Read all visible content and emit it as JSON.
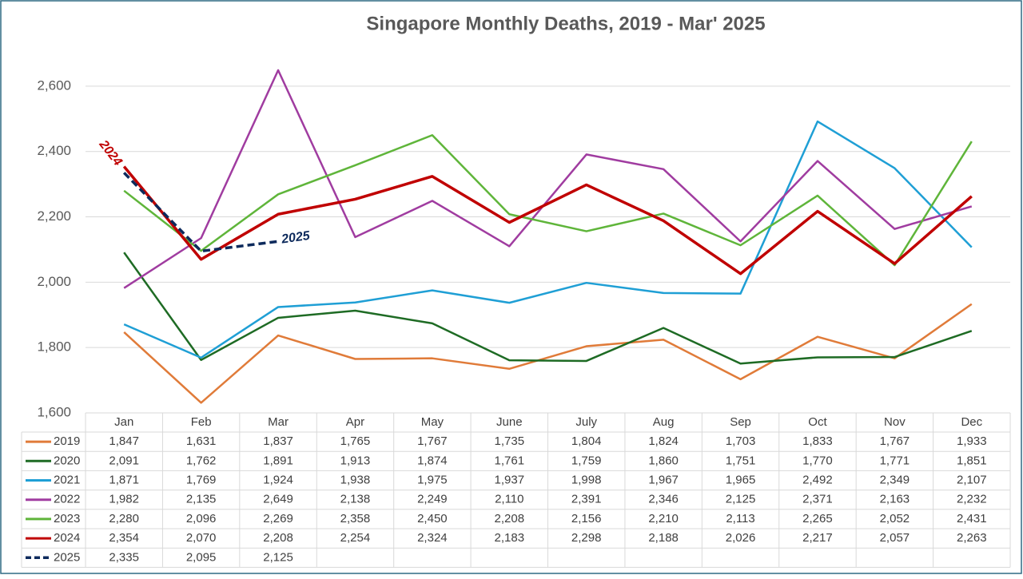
{
  "chart_data": {
    "type": "line",
    "title": "Singapore Monthly Deaths, 2019 - Mar' 2025",
    "categories": [
      "Jan",
      "Feb",
      "Mar",
      "Apr",
      "May",
      "June",
      "July",
      "Aug",
      "Sep",
      "Oct",
      "Nov",
      "Dec"
    ],
    "ylim": [
      1600,
      2700
    ],
    "yticks": [
      {
        "value": 1600,
        "label": "1,600"
      },
      {
        "value": 1800,
        "label": "1,800"
      },
      {
        "value": 2000,
        "label": "2,000"
      },
      {
        "value": 2200,
        "label": "2,200"
      },
      {
        "value": 2400,
        "label": "2,400"
      },
      {
        "value": 2600,
        "label": "2,600"
      }
    ],
    "grid": true,
    "annotations": [
      {
        "text": "2024",
        "color": "#c00000"
      },
      {
        "text": "2025",
        "color": "#0d2a5c"
      }
    ],
    "series": [
      {
        "name": "2019",
        "color": "#e07b39",
        "values": [
          1847,
          1631,
          1837,
          1765,
          1767,
          1735,
          1804,
          1824,
          1703,
          1833,
          1767,
          1933
        ],
        "value_labels": [
          "1,847",
          "1,631",
          "1,837",
          "1,765",
          "1,767",
          "1,735",
          "1,804",
          "1,824",
          "1,703",
          "1,833",
          "1,767",
          "1,933"
        ]
      },
      {
        "name": "2020",
        "color": "#1e6b24",
        "values": [
          2091,
          1762,
          1891,
          1913,
          1874,
          1761,
          1759,
          1860,
          1751,
          1770,
          1771,
          1851
        ],
        "value_labels": [
          "2,091",
          "1,762",
          "1,891",
          "1,913",
          "1,874",
          "1,761",
          "1,759",
          "1,860",
          "1,751",
          "1,770",
          "1,771",
          "1,851"
        ]
      },
      {
        "name": "2021",
        "color": "#1f9fd5",
        "values": [
          1871,
          1769,
          1924,
          1938,
          1975,
          1937,
          1998,
          1967,
          1965,
          2492,
          2349,
          2107
        ],
        "value_labels": [
          "1,871",
          "1,769",
          "1,924",
          "1,938",
          "1,975",
          "1,937",
          "1,998",
          "1,967",
          "1,965",
          "2,492",
          "2,349",
          "2,107"
        ]
      },
      {
        "name": "2022",
        "color": "#a03ca0",
        "values": [
          1982,
          2135,
          2649,
          2138,
          2249,
          2110,
          2391,
          2346,
          2125,
          2371,
          2163,
          2232
        ],
        "value_labels": [
          "1,982",
          "2,135",
          "2,649",
          "2,138",
          "2,249",
          "2,110",
          "2,391",
          "2,346",
          "2,125",
          "2,371",
          "2,163",
          "2,232"
        ]
      },
      {
        "name": "2023",
        "color": "#5fb53a",
        "values": [
          2280,
          2096,
          2269,
          2358,
          2450,
          2208,
          2156,
          2210,
          2113,
          2265,
          2052,
          2431
        ],
        "value_labels": [
          "2,280",
          "2,096",
          "2,269",
          "2,358",
          "2,450",
          "2,208",
          "2,156",
          "2,210",
          "2,113",
          "2,265",
          "2,052",
          "2,431"
        ]
      },
      {
        "name": "2024",
        "color": "#c00000",
        "values": [
          2354,
          2070,
          2208,
          2254,
          2324,
          2183,
          2298,
          2188,
          2026,
          2217,
          2057,
          2263
        ],
        "value_labels": [
          "2,354",
          "2,070",
          "2,208",
          "2,254",
          "2,324",
          "2,183",
          "2,298",
          "2,188",
          "2,026",
          "2,217",
          "2,057",
          "2,263"
        ]
      },
      {
        "name": "2025",
        "color": "#0d2a5c",
        "values": [
          2335,
          2095,
          2125,
          null,
          null,
          null,
          null,
          null,
          null,
          null,
          null,
          null
        ],
        "value_labels": [
          "2,335",
          "2,095",
          "2,125",
          null,
          null,
          null,
          null,
          null,
          null,
          null,
          null,
          null
        ]
      }
    ]
  }
}
